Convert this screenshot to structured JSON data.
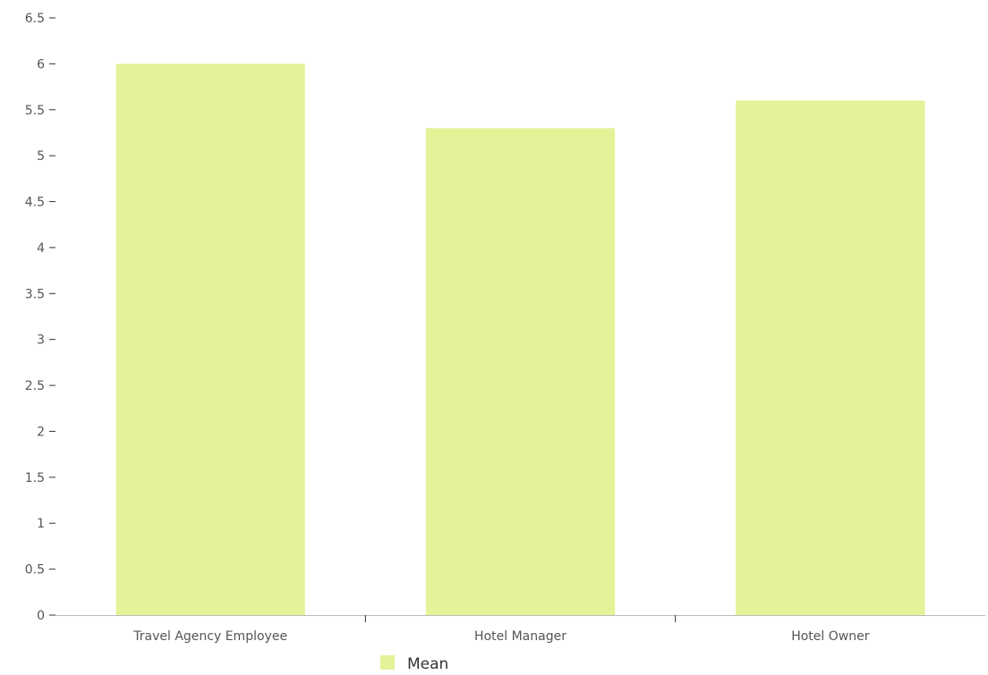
{
  "chart_data": {
    "type": "bar",
    "categories": [
      "Travel Agency Employee",
      "Hotel Manager",
      "Hotel Owner"
    ],
    "series": [
      {
        "name": "Mean",
        "values": [
          6.0,
          5.3,
          5.6
        ]
      }
    ],
    "ylim": [
      0,
      6.5
    ],
    "yticks": [
      0,
      0.5,
      1,
      1.5,
      2,
      2.5,
      3,
      3.5,
      4,
      4.5,
      5,
      5.5,
      6,
      6.5
    ],
    "ytick_labels": [
      "0",
      "0.5",
      "1",
      "1.5",
      "2",
      "2.5",
      "3",
      "3.5",
      "4",
      "4.5",
      "5",
      "5.5",
      "6",
      "6.5"
    ],
    "xlabel": "",
    "ylabel": "",
    "grid": false,
    "legend": {
      "position": "bottom-center",
      "entries": [
        "Mean"
      ]
    },
    "colors": {
      "bar": "#e3f398",
      "axis": "#bbbbbb",
      "tick": "#333333",
      "text": "#555555"
    }
  }
}
